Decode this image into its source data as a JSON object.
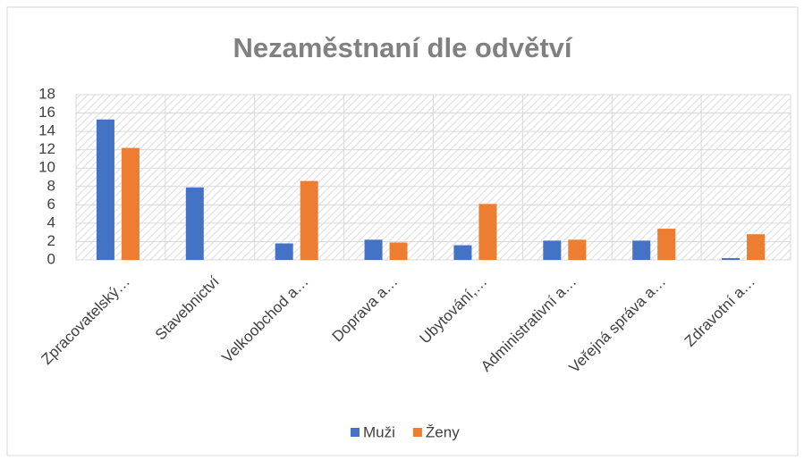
{
  "chart_data": {
    "type": "bar",
    "title": "Nezaměstnaní dle odvětví",
    "categories": [
      "Zpracovatelský…",
      "Stavebnictví",
      "Velkoobchod a…",
      "Doprava a…",
      "Ubytování,…",
      "Administrativní a…",
      "Veřejná správa a…",
      "Zdravotní a…"
    ],
    "series": [
      {
        "name": "Muži",
        "color": "#4472c4",
        "values": [
          15.3,
          7.9,
          1.8,
          2.2,
          1.6,
          2.1,
          2.1,
          0.2
        ]
      },
      {
        "name": "Ženy",
        "color": "#ed7d31",
        "values": [
          12.2,
          0,
          8.6,
          1.9,
          6.1,
          2.2,
          3.4,
          2.8
        ]
      }
    ],
    "ylim": [
      0,
      18
    ],
    "yticks": [
      0,
      2,
      4,
      6,
      8,
      10,
      12,
      14,
      16,
      18
    ],
    "grid": true,
    "legend": "bottom"
  }
}
